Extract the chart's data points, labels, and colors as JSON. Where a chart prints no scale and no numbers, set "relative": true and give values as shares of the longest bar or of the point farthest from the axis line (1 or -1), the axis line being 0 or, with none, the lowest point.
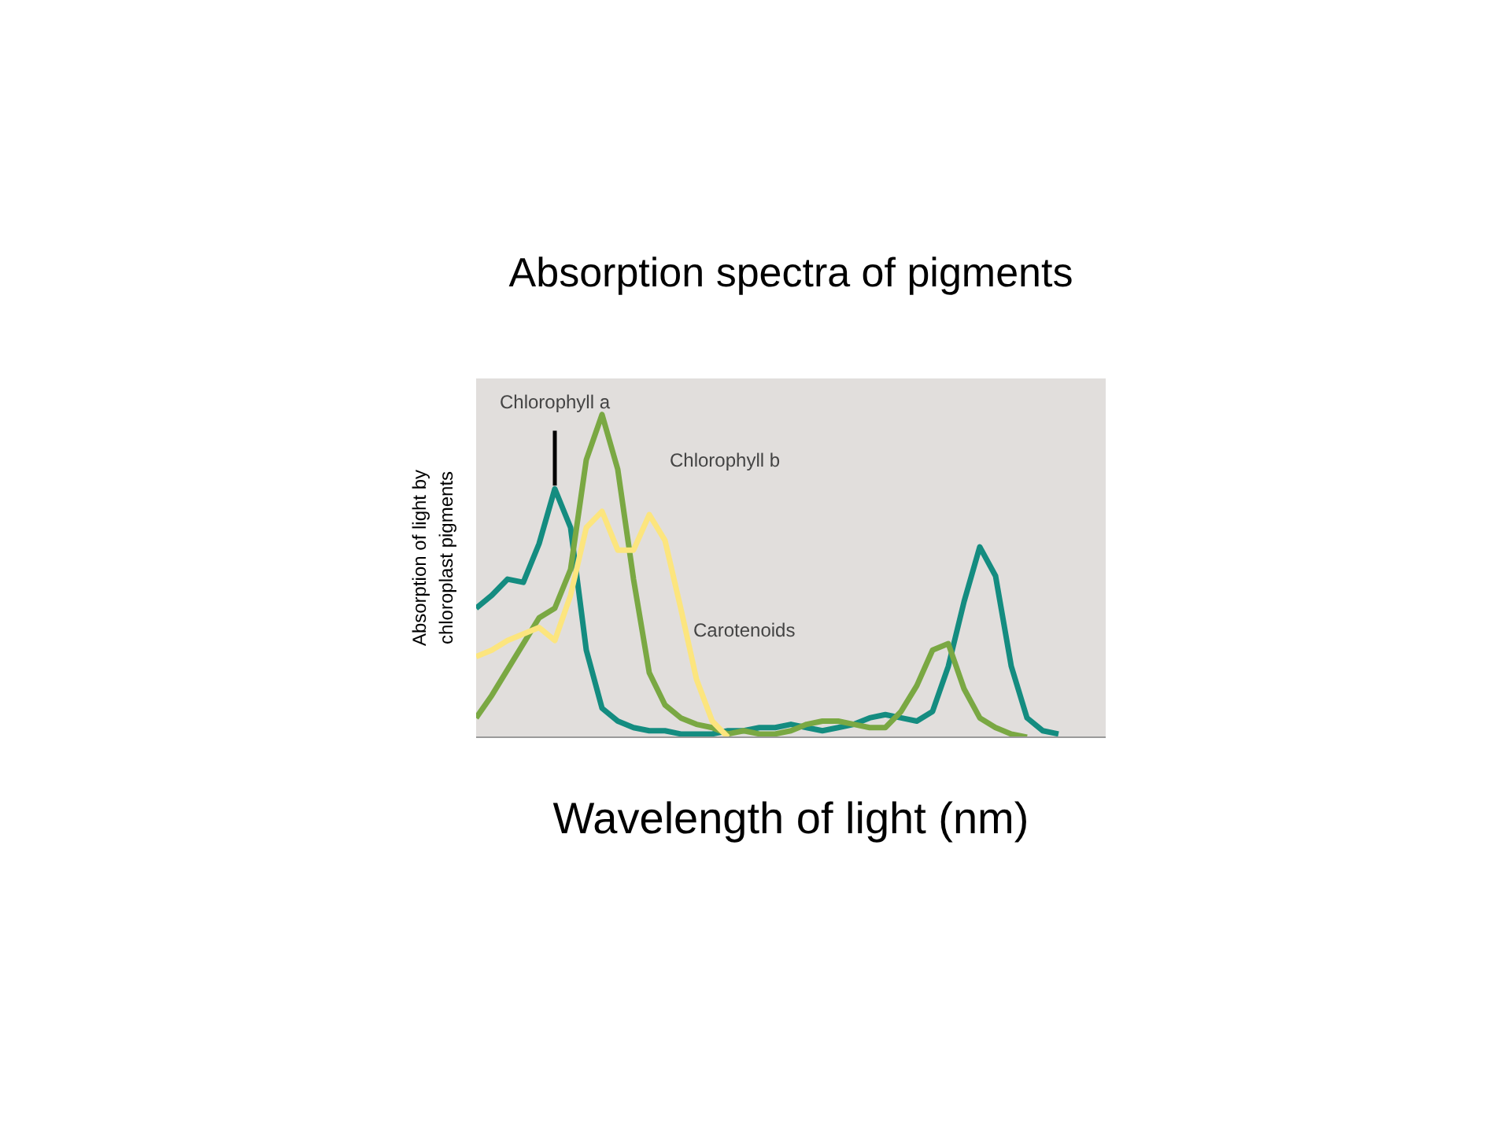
{
  "chart_data": {
    "type": "line",
    "title": "Absorption spectra of pigments",
    "xlabel": "Wavelength of light (nm)",
    "ylabel": "Absorption of light by chloroplast pigments",
    "relative": true,
    "categories": [
      null,
      null,
      null,
      null,
      null,
      null,
      null,
      null,
      null,
      null,
      null,
      null,
      null,
      null,
      null,
      null,
      null,
      null,
      null,
      null,
      null,
      null,
      null,
      null,
      null,
      null,
      null,
      null,
      null,
      null,
      null,
      null,
      null,
      null,
      null,
      null,
      null,
      null,
      null
    ],
    "line_style": "solid",
    "series": [
      {
        "name": "Chlorophyll a",
        "color": "#148c80",
        "values": [
          0.4,
          0.44,
          0.49,
          0.48,
          0.6,
          0.77,
          0.65,
          0.27,
          0.09,
          0.05,
          0.03,
          0.02,
          0.02,
          0.01,
          0.01,
          0.01,
          0.02,
          0.02,
          0.03,
          0.03,
          0.04,
          0.03,
          0.02,
          0.03,
          0.04,
          0.06,
          0.07,
          0.06,
          0.05,
          0.08,
          0.22,
          0.42,
          0.59,
          0.5,
          0.22,
          0.06,
          0.02,
          0.01,
          null
        ]
      },
      {
        "name": "Chlorophyll b",
        "color": "#7aa843",
        "values": [
          0.06,
          0.13,
          0.21,
          0.29,
          0.37,
          0.4,
          0.52,
          0.86,
          1,
          0.83,
          0.49,
          0.2,
          0.1,
          0.06,
          0.04,
          0.03,
          0.01,
          0.02,
          0.01,
          0.01,
          0.02,
          0.04,
          0.05,
          0.05,
          0.04,
          0.03,
          0.03,
          0.08,
          0.16,
          0.27,
          0.29,
          0.15,
          0.06,
          0.03,
          0.01,
          0,
          null,
          null,
          null
        ]
      },
      {
        "name": "Carotenoids",
        "color": "#fce57e",
        "values": [
          0.25,
          0.27,
          0.3,
          0.32,
          0.34,
          0.3,
          0.44,
          0.65,
          0.7,
          0.58,
          0.58,
          0.69,
          0.61,
          0.4,
          0.18,
          0.05,
          0,
          null,
          null,
          null,
          null,
          null,
          null,
          null,
          null,
          null,
          null,
          null,
          null,
          null,
          null,
          null,
          null,
          null,
          null,
          null,
          null,
          null,
          null
        ]
      }
    ]
  }
}
